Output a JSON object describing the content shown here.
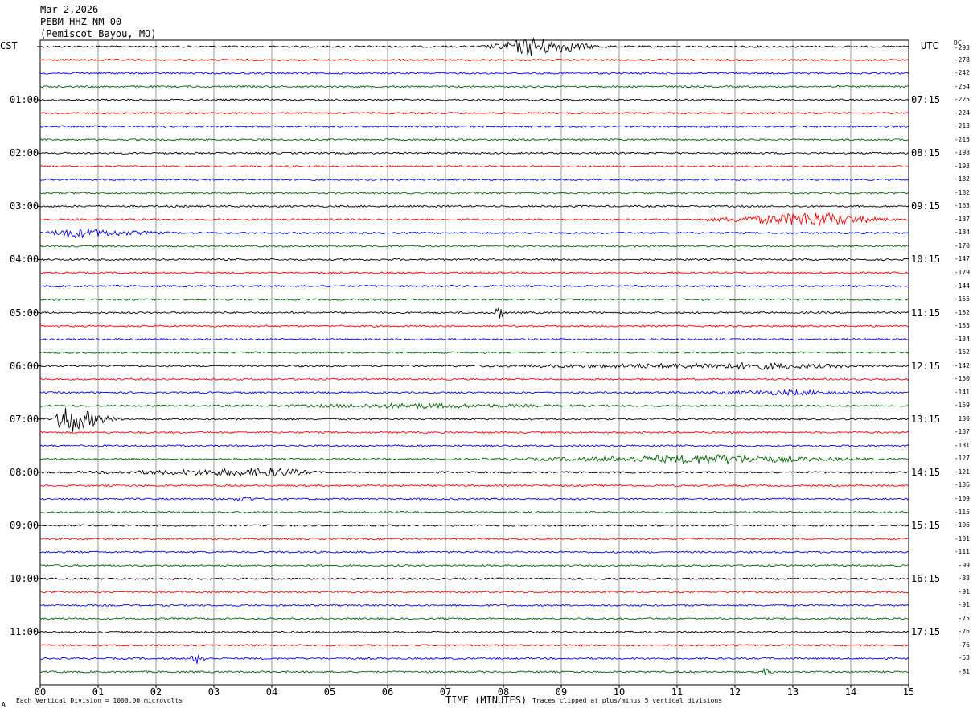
{
  "header": {
    "date": "Mar 2,2026",
    "station": "PEBM HHZ NM 00",
    "location": "(Pemiscot Bayou, MO)"
  },
  "left_zone_label": "CST",
  "right_zone_label": "UTC",
  "dc_header": "DC",
  "footer": {
    "scale_note": "Each Vertical Division = 1000.00 microvolts",
    "clip_note": "Traces clipped at plus/minus 5 vertical divisions",
    "corner_mark": "A"
  },
  "colors": {
    "black": "#000000",
    "red": "#ff0000",
    "blue": "#0000ff",
    "green": "#006400",
    "grid": "#808080"
  },
  "chart_data": {
    "type": "line",
    "xlabel": "TIME (MINUTES)",
    "x_ticks": [
      "00",
      "01",
      "02",
      "03",
      "04",
      "05",
      "06",
      "07",
      "08",
      "09",
      "10",
      "11",
      "12",
      "13",
      "14",
      "15"
    ],
    "xlim": [
      0,
      15
    ],
    "trace_color_cycle": [
      "black",
      "red",
      "blue",
      "green"
    ],
    "left_hour_labels": [
      "01:00",
      "02:00",
      "03:00",
      "04:00",
      "05:00",
      "06:00",
      "07:00",
      "08:00",
      "09:00",
      "10:00",
      "11:00"
    ],
    "right_hour_labels": [
      "07:15",
      "08:15",
      "09:15",
      "10:15",
      "11:15",
      "12:15",
      "13:15",
      "14:15",
      "15:15",
      "16:15",
      "17:15"
    ],
    "dc_offsets": [
      "-293",
      "-278",
      "-242",
      "-254",
      "-225",
      "-224",
      "-213",
      "-215",
      "-198",
      "-193",
      "-182",
      "-182",
      "-163",
      "-187",
      "-184",
      "-170",
      "-147",
      "-179",
      "-144",
      "-155",
      "-152",
      "-155",
      "-134",
      "-152",
      "-142",
      "-150",
      "-141",
      "-159",
      "130",
      "-137",
      "-131",
      "-127",
      "-121",
      "-136",
      "-109",
      "-115",
      "-106",
      "-101",
      "-111",
      "-99",
      "-88",
      "-91",
      "-91",
      "-75",
      "-76",
      "-76",
      "-53",
      "-81"
    ],
    "events": [
      {
        "trace": 0,
        "start_min": 7.5,
        "peak_min": 8.5,
        "end_min": 10.0,
        "amp": 0.7
      },
      {
        "trace": 13,
        "start_min": 11.0,
        "peak_min": 13.4,
        "end_min": 15.0,
        "amp": 0.55
      },
      {
        "trace": 14,
        "start_min": 0.0,
        "peak_min": 0.5,
        "end_min": 2.5,
        "amp": 0.35
      },
      {
        "trace": 20,
        "start_min": 7.8,
        "peak_min": 7.9,
        "end_min": 8.1,
        "amp": 0.6
      },
      {
        "trace": 24,
        "start_min": 6.0,
        "peak_min": 12.5,
        "end_min": 15.0,
        "amp": 0.2
      },
      {
        "trace": 26,
        "start_min": 10.5,
        "peak_min": 13.0,
        "end_min": 14.5,
        "amp": 0.15
      },
      {
        "trace": 27,
        "start_min": 3.0,
        "peak_min": 6.5,
        "end_min": 10.0,
        "amp": 0.15
      },
      {
        "trace": 28,
        "start_min": 0.2,
        "peak_min": 0.4,
        "end_min": 1.5,
        "amp": 1.2
      },
      {
        "trace": 31,
        "start_min": 7.0,
        "peak_min": 11.7,
        "end_min": 15.0,
        "amp": 0.3
      },
      {
        "trace": 32,
        "start_min": 0.0,
        "peak_min": 4.1,
        "end_min": 5.0,
        "amp": 0.3
      },
      {
        "trace": 34,
        "start_min": 3.3,
        "peak_min": 3.5,
        "end_min": 3.8,
        "amp": 0.25
      },
      {
        "trace": 46,
        "start_min": 2.5,
        "peak_min": 2.7,
        "end_min": 3.0,
        "amp": 0.35
      },
      {
        "trace": 47,
        "start_min": 12.4,
        "peak_min": 12.5,
        "end_min": 12.7,
        "amp": 0.25
      }
    ]
  }
}
